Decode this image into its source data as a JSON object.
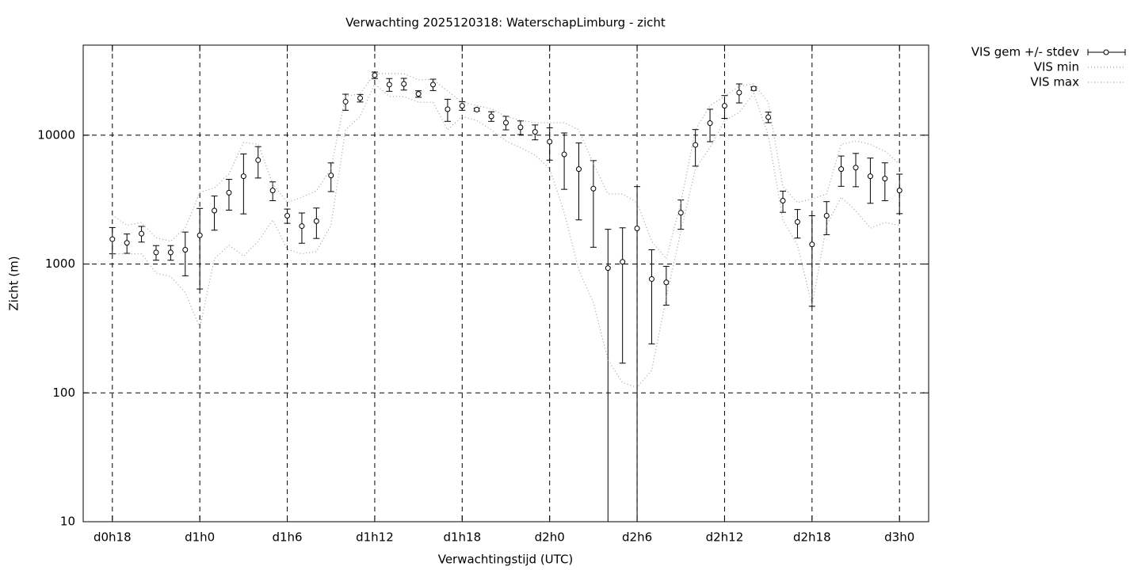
{
  "chart_data": {
    "type": "errorbar-line",
    "title": "Verwachting 2025120318: WaterschapLimburg - zicht",
    "xlabel": "Verwachtingstijd (UTC)",
    "ylabel": "Zicht (m)",
    "log_y": true,
    "grid": true,
    "legend": "outside-top-right",
    "xlim": [
      16,
      74
    ],
    "xticks": [
      {
        "value": 18,
        "label": "d0h18"
      },
      {
        "value": 24,
        "label": "d1h0"
      },
      {
        "value": 30,
        "label": "d1h6"
      },
      {
        "value": 36,
        "label": "d1h12"
      },
      {
        "value": 42,
        "label": "d1h18"
      },
      {
        "value": 48,
        "label": "d2h0"
      },
      {
        "value": 54,
        "label": "d2h6"
      },
      {
        "value": 60,
        "label": "d2h12"
      },
      {
        "value": 66,
        "label": "d2h18"
      },
      {
        "value": 72,
        "label": "d3h0"
      }
    ],
    "ylim": [
      10,
      50000
    ],
    "yticks": [
      10,
      100,
      1000,
      10000
    ],
    "x": [
      18,
      19,
      20,
      21,
      22,
      23,
      24,
      25,
      26,
      27,
      28,
      29,
      30,
      31,
      32,
      33,
      34,
      35,
      36,
      37,
      38,
      39,
      40,
      41,
      42,
      43,
      44,
      45,
      46,
      47,
      48,
      49,
      50,
      51,
      52,
      53,
      54,
      55,
      56,
      57,
      58,
      59,
      60,
      61,
      62,
      63,
      64,
      65,
      66,
      67,
      68,
      69,
      70,
      71,
      72
    ],
    "series": [
      {
        "name": "VIS gem +/- stdev",
        "color": "#000000",
        "style": "errorbars",
        "values": [
          1560,
          1460,
          1720,
          1230,
          1230,
          1290,
          1670,
          2600,
          3580,
          4800,
          6400,
          3720,
          2370,
          1970,
          2150,
          4870,
          18200,
          19400,
          29200,
          24700,
          25000,
          20900,
          24700,
          15900,
          16900,
          15800,
          14000,
          12500,
          11500,
          10600,
          8900,
          7100,
          5450,
          3850,
          930,
          1040,
          1890,
          765,
          720,
          2500,
          8400,
          12400,
          16900,
          21400,
          23000,
          13800,
          3100,
          2120,
          1420,
          2370,
          5450,
          5600,
          4800,
          4600,
          3720
        ],
        "errors": [
          360,
          250,
          240,
          160,
          160,
          480,
          1030,
          770,
          960,
          2350,
          1750,
          620,
          300,
          520,
          570,
          1220,
          2600,
          1300,
          1700,
          2800,
          2600,
          1200,
          2500,
          3100,
          1300,
          400,
          1200,
          1500,
          1400,
          1400,
          2500,
          3300,
          3250,
          2500,
          930,
          870,
          2100,
          525,
          240,
          640,
          2650,
          3500,
          3400,
          3600,
          700,
          1300,
          580,
          530,
          950,
          680,
          1440,
          1620,
          1840,
          1500,
          1260
        ]
      },
      {
        "name": "VIS min",
        "color": "#a0a0a0",
        "style": "dotted",
        "values": [
          1200,
          1200,
          1200,
          850,
          800,
          600,
          320,
          1100,
          1400,
          1150,
          1500,
          2200,
          1300,
          1200,
          1250,
          2000,
          11000,
          14000,
          25000,
          20000,
          20000,
          18000,
          18000,
          11000,
          14000,
          13000,
          11000,
          9000,
          8000,
          7000,
          5500,
          2500,
          900,
          500,
          180,
          120,
          110,
          150,
          550,
          1800,
          5500,
          8000,
          13000,
          15000,
          21000,
          10000,
          2200,
          1400,
          480,
          2000,
          3300,
          2600,
          1900,
          2100,
          2000
        ]
      },
      {
        "name": "VIS max",
        "color": "#a0a0a0",
        "style": "dotted",
        "values": [
          2400,
          2000,
          2100,
          1600,
          1500,
          1900,
          3600,
          3900,
          5000,
          8800,
          8500,
          4200,
          3000,
          3300,
          3700,
          5500,
          20000,
          21000,
          30000,
          30000,
          30000,
          27000,
          27000,
          22000,
          18000,
          17000,
          16000,
          14000,
          13000,
          12500,
          12500,
          12500,
          11000,
          6000,
          3500,
          3500,
          3000,
          1500,
          1100,
          3000,
          11000,
          17000,
          20000,
          24000,
          25000,
          18000,
          4000,
          3000,
          3200,
          3500,
          8500,
          9000,
          8500,
          7500,
          6000
        ]
      }
    ]
  }
}
